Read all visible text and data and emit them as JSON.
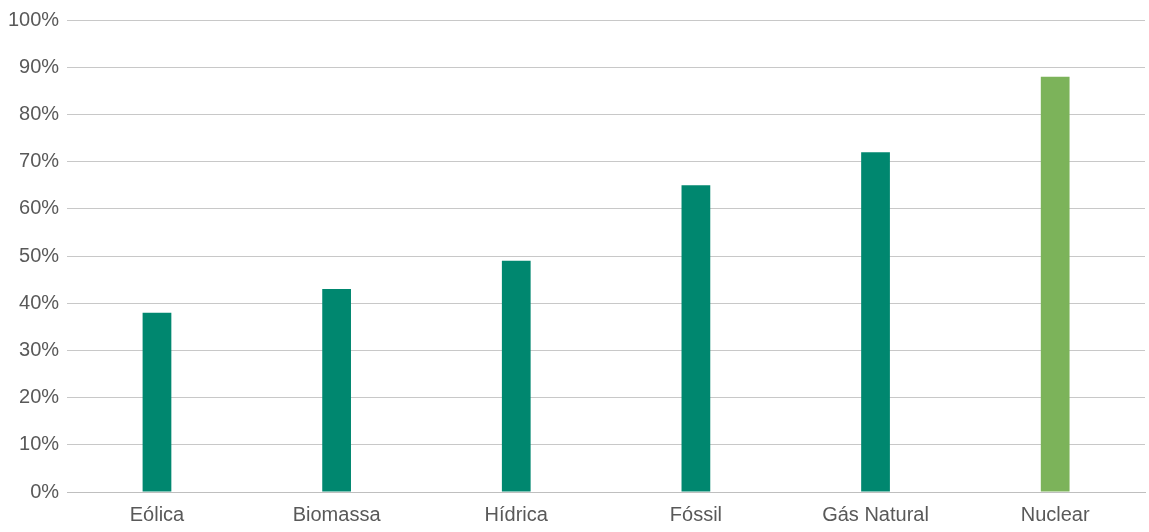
{
  "chart_data": {
    "type": "bar",
    "categories": [
      "Eólica",
      "Biomassa",
      "Hídrica",
      "Fóssil",
      "Gás Natural",
      "Nuclear"
    ],
    "values": [
      38,
      43,
      49,
      65,
      72,
      88
    ],
    "colors": [
      "#00876f",
      "#00876f",
      "#00876f",
      "#00876f",
      "#00876f",
      "#7cb35a"
    ],
    "ylim": [
      0,
      100
    ],
    "yticks": [
      {
        "value": 0,
        "label": "0%"
      },
      {
        "value": 10,
        "label": "10%"
      },
      {
        "value": 20,
        "label": "20%"
      },
      {
        "value": 30,
        "label": "30%"
      },
      {
        "value": 40,
        "label": "40%"
      },
      {
        "value": 50,
        "label": "50%"
      },
      {
        "value": 60,
        "label": "60%"
      },
      {
        "value": 70,
        "label": "70%"
      },
      {
        "value": 80,
        "label": "80%"
      },
      {
        "value": 90,
        "label": "90%"
      },
      {
        "value": 100,
        "label": "100%"
      }
    ],
    "grid": "y"
  }
}
